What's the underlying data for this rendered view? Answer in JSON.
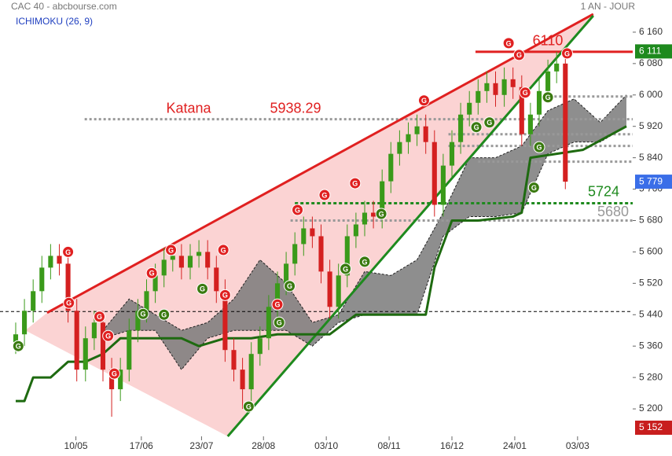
{
  "chart_data": {
    "type": "candlestick",
    "title": "CAC 40 - abcbourse.com",
    "subtitle": "ICHIMOKU (26, 9)",
    "period": "1 AN - JOUR",
    "xlim": [
      -1.8,
      70.72
    ],
    "ylim": [
      5130,
      6242
    ],
    "xticks": [
      {
        "value": 6.9,
        "label": "10/05"
      },
      {
        "value": 14.4,
        "label": "17/06"
      },
      {
        "value": 21.3,
        "label": "23/07"
      },
      {
        "value": 28.4,
        "label": "28/08"
      },
      {
        "value": 35.6,
        "label": "03/10"
      },
      {
        "value": 42.8,
        "label": "08/11"
      },
      {
        "value": 50,
        "label": "16/12"
      },
      {
        "value": 57.2,
        "label": "24/01"
      },
      {
        "value": 64.4,
        "label": "03/03"
      }
    ],
    "yticks": [
      {
        "value": 5200,
        "label": "5 200"
      },
      {
        "value": 5280,
        "label": "5 280"
      },
      {
        "value": 5360,
        "label": "5 360"
      },
      {
        "value": 5440,
        "label": "5 440"
      },
      {
        "value": 5520,
        "label": "5 520"
      },
      {
        "value": 5600,
        "label": "5 600"
      },
      {
        "value": 5680,
        "label": "5 680"
      },
      {
        "value": 5760,
        "label": "5 760"
      },
      {
        "value": 5840,
        "label": "5 840"
      },
      {
        "value": 5920,
        "label": "5 920"
      },
      {
        "value": 6000,
        "label": "6 000"
      },
      {
        "value": 6080,
        "label": "6 080"
      },
      {
        "value": 6160,
        "label": "6 160"
      }
    ],
    "up_color": "#3a9a1a",
    "down_color": "#d42020",
    "candles": {
      "x": [
        0,
        1,
        2,
        3,
        4,
        5,
        6,
        7,
        8,
        9,
        10,
        11,
        12,
        13,
        14,
        15,
        16,
        17,
        18,
        19,
        20,
        21,
        22,
        23,
        24,
        25,
        26,
        27,
        28,
        29,
        30,
        31,
        32,
        33,
        34,
        35,
        36,
        37,
        38,
        39,
        40,
        41,
        42,
        43,
        44,
        45,
        46,
        47,
        48,
        49,
        50,
        51,
        52,
        53,
        54,
        55,
        56,
        57,
        58,
        59,
        60,
        61,
        62,
        63
      ],
      "open": [
        5370,
        5390,
        5450,
        5500,
        5560,
        5590,
        5570,
        5450,
        5300,
        5380,
        5420,
        5300,
        5250,
        5300,
        5400,
        5450,
        5500,
        5540,
        5580,
        5590,
        5560,
        5590,
        5600,
        5560,
        5500,
        5350,
        5300,
        5250,
        5340,
        5380,
        5460,
        5520,
        5570,
        5620,
        5660,
        5640,
        5550,
        5460,
        5540,
        5640,
        5670,
        5700,
        5690,
        5780,
        5850,
        5880,
        5900,
        5920,
        5880,
        5720,
        5820,
        5880,
        5950,
        5980,
        6010,
        6030,
        6000,
        6040,
        6020,
        5900,
        5950,
        6010,
        6060,
        6080
      ],
      "high": [
        5420,
        5480,
        5530,
        5590,
        5620,
        5620,
        5600,
        5480,
        5410,
        5450,
        5450,
        5330,
        5330,
        5430,
        5480,
        5530,
        5570,
        5610,
        5620,
        5620,
        5620,
        5630,
        5630,
        5590,
        5530,
        5380,
        5330,
        5370,
        5410,
        5490,
        5550,
        5600,
        5650,
        5690,
        5690,
        5670,
        5580,
        5570,
        5670,
        5700,
        5730,
        5730,
        5810,
        5880,
        5910,
        5930,
        5950,
        5950,
        5910,
        5850,
        5910,
        5980,
        6010,
        6040,
        6060,
        6060,
        6070,
        6070,
        6050,
        5980,
        6040,
        6090,
        6110,
        6110
      ],
      "low": [
        5340,
        5360,
        5420,
        5470,
        5530,
        5540,
        5420,
        5270,
        5270,
        5350,
        5270,
        5180,
        5220,
        5270,
        5370,
        5420,
        5470,
        5510,
        5550,
        5530,
        5530,
        5560,
        5530,
        5470,
        5320,
        5270,
        5200,
        5220,
        5310,
        5350,
        5430,
        5490,
        5540,
        5590,
        5610,
        5520,
        5430,
        5430,
        5510,
        5610,
        5640,
        5660,
        5660,
        5750,
        5820,
        5850,
        5870,
        5850,
        5690,
        5690,
        5790,
        5850,
        5920,
        5950,
        5980,
        5970,
        5970,
        5990,
        5870,
        5870,
        5920,
        5980,
        6030,
        5760
      ],
      "close": [
        5390,
        5450,
        5500,
        5560,
        5590,
        5570,
        5450,
        5300,
        5380,
        5420,
        5300,
        5250,
        5300,
        5400,
        5450,
        5500,
        5540,
        5580,
        5590,
        5560,
        5590,
        5600,
        5560,
        5500,
        5350,
        5300,
        5250,
        5340,
        5380,
        5460,
        5520,
        5570,
        5620,
        5660,
        5640,
        5550,
        5460,
        5540,
        5640,
        5670,
        5700,
        5690,
        5780,
        5850,
        5880,
        5900,
        5920,
        5880,
        5720,
        5820,
        5880,
        5950,
        5980,
        6010,
        6030,
        6000,
        6040,
        6020,
        5900,
        5950,
        6010,
        6060,
        6080,
        5779
      ]
    },
    "cloud": {
      "color": "#7a7a7a",
      "x": [
        10,
        13,
        16,
        19,
        22,
        25,
        28,
        31,
        34,
        37,
        40,
        43,
        46,
        49,
        52,
        55,
        58,
        61,
        64,
        67,
        70
      ],
      "span_a": [
        5400,
        5480,
        5440,
        5400,
        5420,
        5480,
        5580,
        5520,
        5420,
        5440,
        5550,
        5540,
        5580,
        5700,
        5840,
        5840,
        5870,
        5960,
        5990,
        5930,
        6000
      ],
      "span_b": [
        5380,
        5400,
        5400,
        5300,
        5380,
        5400,
        5400,
        5400,
        5360,
        5420,
        5440,
        5440,
        5440,
        5640,
        5690,
        5690,
        5700,
        5850,
        5880,
        5880,
        5920
      ]
    },
    "kijun": {
      "color": "#1e6a10",
      "x": [
        0,
        1,
        2,
        4,
        6,
        8,
        10,
        12,
        15,
        19,
        21,
        24,
        27,
        30,
        33,
        36,
        39,
        42,
        47,
        48,
        50,
        53,
        57,
        58,
        59,
        62,
        65,
        70
      ],
      "values": [
        5220,
        5220,
        5280,
        5280,
        5320,
        5320,
        5340,
        5380,
        5380,
        5380,
        5360,
        5380,
        5380,
        5390,
        5390,
        5390,
        5440,
        5440,
        5440,
        5560,
        5680,
        5680,
        5690,
        5700,
        5840,
        5850,
        5860,
        5920
      ]
    },
    "wedge": {
      "color": "#fbd3d3",
      "x": [
        1.1,
        3.6,
        66.2,
        24.3
      ],
      "values": [
        5400,
        5445,
        6206,
        5130
      ]
    },
    "trendlines": [
      {
        "color": "#e02020",
        "x": [
          3.6,
          66.2
        ],
        "values": [
          5445,
          6206
        ]
      },
      {
        "color": "#1e8a1e",
        "x": [
          24.3,
          66.2
        ],
        "values": [
          5130,
          6202
        ]
      }
    ],
    "levels": [
      {
        "value": 6110,
        "x0": 52.7,
        "color": "#e02020",
        "dash": "none",
        "width": 3,
        "show_value": true
      },
      {
        "value": 5938.29,
        "x0": 7.9,
        "color": "#999999",
        "dash": "3 3",
        "width": 3,
        "show_value": true,
        "note": "Katana",
        "text_color": "#e02020"
      },
      {
        "value": 5724,
        "x0": 32,
        "color": "#1e8a1e",
        "dash": "4 3",
        "width": 3,
        "show_value": true
      },
      {
        "value": 5680,
        "x0": 31.5,
        "color": "#999999",
        "dash": "3 3",
        "width": 3,
        "show_value": true
      },
      {
        "value": 5996,
        "x0": 61.2,
        "color": "#999999",
        "dash": "3 3",
        "width": 3,
        "show_value": false
      },
      {
        "value": 5900,
        "x0": 49.6,
        "color": "#999999",
        "dash": "3 3",
        "width": 3,
        "show_value": false
      },
      {
        "value": 5870,
        "x0": 49.6,
        "color": "#999999",
        "dash": "3 3",
        "width": 3,
        "show_value": false
      },
      {
        "value": 5830,
        "x0": 53,
        "color": "#999999",
        "dash": "3 3",
        "width": 3,
        "show_value": false
      },
      {
        "value": 5448,
        "x0": -1.8,
        "color": "#000000",
        "dash": "4 3",
        "width": 1,
        "show_value": false
      }
    ],
    "signals": {
      "label": "G",
      "points": [
        {
          "x": 6.1,
          "value": 5470,
          "color": "#e02020"
        },
        {
          "x": 6,
          "value": 5600,
          "color": "#e02020"
        },
        {
          "x": 9.6,
          "value": 5435,
          "color": "#e02020"
        },
        {
          "x": 10.6,
          "value": 5386,
          "color": "#e02020"
        },
        {
          "x": 11.3,
          "value": 5290,
          "color": "#e02020"
        },
        {
          "x": 15.6,
          "value": 5546,
          "color": "#e02020"
        },
        {
          "x": 17.8,
          "value": 5605,
          "color": "#e02020"
        },
        {
          "x": 23.8,
          "value": 5605,
          "color": "#e02020"
        },
        {
          "x": 24,
          "value": 5490,
          "color": "#e02020"
        },
        {
          "x": 30,
          "value": 5466,
          "color": "#e02020"
        },
        {
          "x": 32.3,
          "value": 5707,
          "color": "#e02020"
        },
        {
          "x": 35.4,
          "value": 5745,
          "color": "#e02020"
        },
        {
          "x": 38.9,
          "value": 5775,
          "color": "#e02020"
        },
        {
          "x": 46.8,
          "value": 5986,
          "color": "#e02020"
        },
        {
          "x": 56.5,
          "value": 6132,
          "color": "#e02020"
        },
        {
          "x": 57.7,
          "value": 6102,
          "color": "#e02020"
        },
        {
          "x": 58.4,
          "value": 6006,
          "color": "#e02020"
        },
        {
          "x": 63.2,
          "value": 6106,
          "color": "#e02020"
        },
        {
          "x": 0.3,
          "value": 5360,
          "color": "#3a7a10"
        },
        {
          "x": 14.6,
          "value": 5442,
          "color": "#3a7a10"
        },
        {
          "x": 17,
          "value": 5440,
          "color": "#3a7a10"
        },
        {
          "x": 21.4,
          "value": 5506,
          "color": "#3a7a10"
        },
        {
          "x": 26.7,
          "value": 5206,
          "color": "#3a7a10"
        },
        {
          "x": 30.2,
          "value": 5420,
          "color": "#3a7a10"
        },
        {
          "x": 31.4,
          "value": 5513,
          "color": "#3a7a10"
        },
        {
          "x": 37.8,
          "value": 5557,
          "color": "#3a7a10"
        },
        {
          "x": 40,
          "value": 5575,
          "color": "#3a7a10"
        },
        {
          "x": 41.9,
          "value": 5697,
          "color": "#3a7a10"
        },
        {
          "x": 52.8,
          "value": 5918,
          "color": "#3a7a10"
        },
        {
          "x": 54.3,
          "value": 5930,
          "color": "#3a7a10"
        },
        {
          "x": 59.4,
          "value": 5764,
          "color": "#3a7a10"
        },
        {
          "x": 60,
          "value": 5867,
          "color": "#3a7a10"
        },
        {
          "x": 61,
          "value": 5994,
          "color": "#3a7a10"
        }
      ]
    },
    "badges": [
      {
        "value": 6111,
        "label": "6 111",
        "color": "#1e8a1e"
      },
      {
        "value": 5779,
        "label": "5 779",
        "color": "#3a6ee8"
      },
      {
        "value": 5152,
        "label": "5 152",
        "color": "#c81e1e"
      }
    ]
  }
}
